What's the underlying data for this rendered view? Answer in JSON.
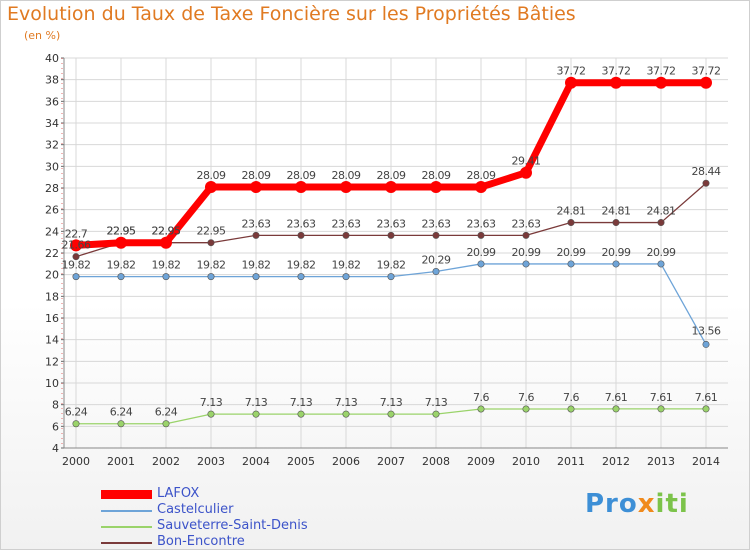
{
  "title": "Evolution du Taux de Taxe Foncière sur les Propriétés Bâties",
  "ylabel": "(en %)",
  "logo": {
    "p1": "Pro",
    "p2": "x",
    "p3": "iti"
  },
  "chart_data": {
    "type": "line",
    "title": "Evolution du Taux de Taxe Foncière sur les Propriétés Bâties",
    "ylabel": "(en %)",
    "xlabel": "",
    "ylim": [
      4,
      40
    ],
    "yticks": [
      4,
      6,
      8,
      10,
      12,
      14,
      16,
      18,
      20,
      22,
      24,
      26,
      28,
      30,
      32,
      34,
      36,
      38,
      40
    ],
    "grid": true,
    "legend_position": "bottom-left",
    "categories": [
      "2000",
      "2001",
      "2002",
      "2003",
      "2004",
      "2005",
      "2006",
      "2007",
      "2008",
      "2009",
      "2010",
      "2011",
      "2012",
      "2013",
      "2014"
    ],
    "series": [
      {
        "name": "LAFOX",
        "color": "#ff0000",
        "width": 7,
        "values": [
          22.7,
          22.95,
          22.95,
          28.09,
          28.09,
          28.09,
          28.09,
          28.09,
          28.09,
          28.09,
          29.41,
          37.72,
          37.72,
          37.72,
          37.72
        ],
        "labels": [
          "22.7",
          "22.95",
          "22.95",
          "28.09",
          "28.09",
          "28.09",
          "28.09",
          "28.09",
          "28.09",
          "28.09",
          "29.41",
          "37.72",
          "37.72",
          "37.72",
          "37.72"
        ]
      },
      {
        "name": "Castelculier",
        "color": "#6ea4d8",
        "width": 1.3,
        "values": [
          19.82,
          19.82,
          19.82,
          19.82,
          19.82,
          19.82,
          19.82,
          19.82,
          20.29,
          20.99,
          20.99,
          20.99,
          20.99,
          20.99,
          13.56
        ],
        "labels": [
          "19.82",
          "19.82",
          "19.82",
          "19.82",
          "19.82",
          "19.82",
          "19.82",
          "19.82",
          "20.29",
          "20.99",
          "20.99",
          "20.99",
          "20.99",
          "20.99",
          "13.56"
        ]
      },
      {
        "name": "Sauveterre-Saint-Denis",
        "color": "#9ad36a",
        "width": 1.3,
        "values": [
          6.24,
          6.24,
          6.24,
          7.13,
          7.13,
          7.13,
          7.13,
          7.13,
          7.13,
          7.6,
          7.6,
          7.6,
          7.61,
          7.61,
          7.61
        ],
        "labels": [
          "6.24",
          "6.24",
          "6.24",
          "7.13",
          "7.13",
          "7.13",
          "7.13",
          "7.13",
          "7.13",
          "7.6",
          "7.6",
          "7.6",
          "7.61",
          "7.61",
          "7.61"
        ]
      },
      {
        "name": "Bon-Encontre",
        "color": "#7a3a3a",
        "width": 1.3,
        "values": [
          21.66,
          22.95,
          22.95,
          22.95,
          23.63,
          23.63,
          23.63,
          23.63,
          23.63,
          23.63,
          23.63,
          24.81,
          24.81,
          24.81,
          28.44
        ],
        "labels": [
          "21.66",
          "22.95",
          "22.95",
          "22.95",
          "23.63",
          "23.63",
          "23.63",
          "23.63",
          "23.63",
          "23.63",
          "23.63",
          "24.81",
          "24.81",
          "24.81",
          "28.44"
        ]
      }
    ]
  }
}
